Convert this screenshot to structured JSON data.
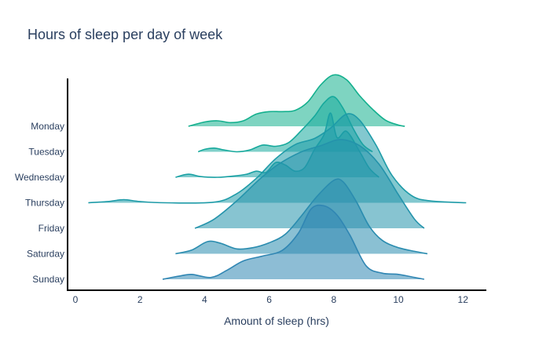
{
  "chart_data": {
    "type": "area",
    "subtype": "ridgeline",
    "title": "Hours of sleep per day of week",
    "xlabel": "Amount of sleep (hrs)",
    "ylabel": "",
    "xlim": [
      0,
      12
    ],
    "xticks": [
      0,
      2,
      4,
      6,
      8,
      10,
      12
    ],
    "grid": false,
    "legend": "none",
    "colors": {
      "title": "#2a3f5f",
      "axis": "#000000"
    },
    "series": [
      {
        "name": "Monday",
        "color": "#14b08e",
        "range": [
          3.5,
          10.2
        ],
        "points": [
          [
            3.5,
            0.0
          ],
          [
            4.0,
            0.07
          ],
          [
            4.4,
            0.09
          ],
          [
            4.8,
            0.06
          ],
          [
            5.2,
            0.09
          ],
          [
            5.6,
            0.2
          ],
          [
            6.0,
            0.24
          ],
          [
            6.4,
            0.24
          ],
          [
            6.8,
            0.26
          ],
          [
            7.2,
            0.4
          ],
          [
            7.6,
            0.68
          ],
          [
            8.0,
            0.84
          ],
          [
            8.4,
            0.76
          ],
          [
            8.8,
            0.5
          ],
          [
            9.2,
            0.28
          ],
          [
            9.6,
            0.1
          ],
          [
            10.0,
            0.02
          ],
          [
            10.2,
            0.0
          ]
        ]
      },
      {
        "name": "Tuesday",
        "color": "#16a99c",
        "range": [
          3.8,
          9.2
        ],
        "points": [
          [
            3.8,
            0.0
          ],
          [
            4.0,
            0.04
          ],
          [
            4.3,
            0.06
          ],
          [
            4.6,
            0.03
          ],
          [
            5.0,
            0.0
          ],
          [
            5.4,
            0.03
          ],
          [
            5.8,
            0.11
          ],
          [
            6.2,
            0.09
          ],
          [
            6.6,
            0.15
          ],
          [
            7.0,
            0.35
          ],
          [
            7.4,
            0.58
          ],
          [
            7.7,
            0.8
          ],
          [
            8.0,
            0.9
          ],
          [
            8.3,
            0.7
          ],
          [
            8.6,
            0.38
          ],
          [
            8.9,
            0.12
          ],
          [
            9.2,
            0.0
          ]
        ]
      },
      {
        "name": "Wednesday",
        "color": "#1aa1a4",
        "range": [
          3.1,
          9.4
        ],
        "points": [
          [
            3.1,
            0.0
          ],
          [
            3.5,
            0.05
          ],
          [
            3.9,
            0.01
          ],
          [
            4.4,
            0.0
          ],
          [
            4.9,
            0.02
          ],
          [
            5.3,
            0.05
          ],
          [
            5.6,
            0.1
          ],
          [
            5.9,
            0.08
          ],
          [
            6.2,
            0.24
          ],
          [
            6.5,
            0.2
          ],
          [
            6.8,
            0.1
          ],
          [
            7.1,
            0.16
          ],
          [
            7.4,
            0.45
          ],
          [
            7.7,
            0.7
          ],
          [
            7.9,
            1.05
          ],
          [
            8.1,
            0.65
          ],
          [
            8.4,
            0.75
          ],
          [
            8.8,
            0.42
          ],
          [
            9.1,
            0.15
          ],
          [
            9.4,
            0.0
          ]
        ]
      },
      {
        "name": "Thursday",
        "color": "#1e9ba8",
        "range": [
          0.4,
          12.1
        ],
        "points": [
          [
            0.4,
            0.0
          ],
          [
            1.0,
            0.02
          ],
          [
            1.5,
            0.05
          ],
          [
            2.0,
            0.02
          ],
          [
            2.8,
            0.0
          ],
          [
            4.3,
            0.01
          ],
          [
            5.0,
            0.15
          ],
          [
            5.6,
            0.4
          ],
          [
            6.2,
            0.72
          ],
          [
            6.8,
            0.95
          ],
          [
            7.4,
            1.05
          ],
          [
            7.9,
            1.22
          ],
          [
            8.4,
            1.45
          ],
          [
            8.8,
            1.35
          ],
          [
            9.3,
            0.95
          ],
          [
            9.8,
            0.45
          ],
          [
            10.4,
            0.12
          ],
          [
            11.0,
            0.03
          ],
          [
            12.1,
            0.0
          ]
        ]
      },
      {
        "name": "Friday",
        "color": "#2493ab",
        "range": [
          3.7,
          10.8
        ],
        "points": [
          [
            3.7,
            0.0
          ],
          [
            4.3,
            0.15
          ],
          [
            5.0,
            0.45
          ],
          [
            5.7,
            0.8
          ],
          [
            6.3,
            1.05
          ],
          [
            7.0,
            1.25
          ],
          [
            7.6,
            1.35
          ],
          [
            8.2,
            1.45
          ],
          [
            8.8,
            1.35
          ],
          [
            9.4,
            1.05
          ],
          [
            10.0,
            0.55
          ],
          [
            10.5,
            0.15
          ],
          [
            10.8,
            0.0
          ]
        ]
      },
      {
        "name": "Saturday",
        "color": "#2a8caf",
        "range": [
          3.1,
          10.9
        ],
        "points": [
          [
            3.1,
            0.0
          ],
          [
            3.6,
            0.06
          ],
          [
            4.1,
            0.2
          ],
          [
            4.5,
            0.17
          ],
          [
            5.0,
            0.08
          ],
          [
            5.5,
            0.1
          ],
          [
            6.0,
            0.18
          ],
          [
            6.5,
            0.32
          ],
          [
            7.0,
            0.62
          ],
          [
            7.5,
            0.95
          ],
          [
            8.0,
            1.2
          ],
          [
            8.3,
            1.17
          ],
          [
            8.7,
            0.85
          ],
          [
            9.1,
            0.45
          ],
          [
            9.5,
            0.22
          ],
          [
            10.0,
            0.1
          ],
          [
            10.5,
            0.04
          ],
          [
            10.9,
            0.0
          ]
        ]
      },
      {
        "name": "Sunday",
        "color": "#3086b3",
        "range": [
          2.7,
          10.8
        ],
        "points": [
          [
            2.7,
            0.0
          ],
          [
            3.2,
            0.05
          ],
          [
            3.6,
            0.08
          ],
          [
            4.2,
            0.03
          ],
          [
            4.7,
            0.15
          ],
          [
            5.2,
            0.3
          ],
          [
            5.8,
            0.38
          ],
          [
            6.4,
            0.47
          ],
          [
            6.9,
            0.75
          ],
          [
            7.3,
            1.15
          ],
          [
            7.7,
            1.2
          ],
          [
            8.1,
            1.05
          ],
          [
            8.5,
            0.72
          ],
          [
            9.0,
            0.22
          ],
          [
            9.5,
            0.1
          ],
          [
            10.0,
            0.08
          ],
          [
            10.5,
            0.03
          ],
          [
            10.8,
            0.0
          ]
        ]
      }
    ]
  }
}
